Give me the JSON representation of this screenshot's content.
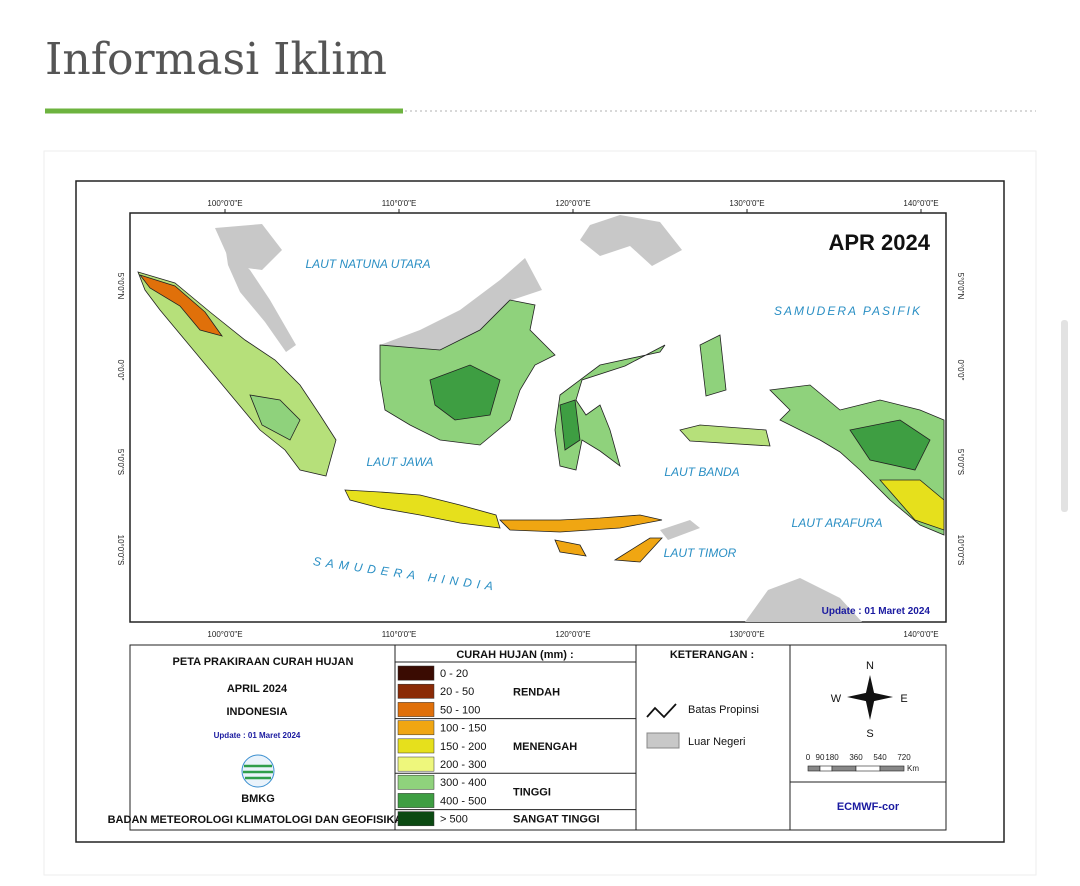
{
  "header": {
    "title": "Informasi Iklim"
  },
  "map": {
    "title": "APR 2024",
    "update": "Update : 01 Maret 2024",
    "longitudes": [
      "100°0'0\"E",
      "110°0'0\"E",
      "120°0'0\"E",
      "130°0'0\"E",
      "140°0'0\"E"
    ],
    "latitudes": [
      "5°0'0\"N",
      "0°0'0\"",
      "5°0'0\"S",
      "10°0'0\"S"
    ],
    "seas": [
      "LAUT NATUNA UTARA",
      "SAMUDERA PASIFIK",
      "LAUT JAWA",
      "LAUT BANDA",
      "LAUT ARAFURA",
      "LAUT TIMOR",
      "SAMUDERA HINDIA"
    ]
  },
  "legend": {
    "title": "PETA PRAKIRAAN CURAH HUJAN",
    "period": "APRIL 2024",
    "region": "INDONESIA",
    "update": "Update : 01 Maret 2024",
    "logo": "BMKG",
    "agency": "BADAN METEOROLOGI KLIMATOLOGI DAN GEOFISIKA",
    "rainfall_title": "CURAH HUJAN (mm) :",
    "groups": [
      {
        "name": "RENDAH",
        "classes": [
          {
            "range": "0 - 20",
            "color": "#3a0b02"
          },
          {
            "range": "20 - 50",
            "color": "#8a2a06"
          },
          {
            "range": "50 - 100",
            "color": "#e0700a"
          }
        ]
      },
      {
        "name": "MENENGAH",
        "classes": [
          {
            "range": "100 - 150",
            "color": "#f0a612"
          },
          {
            "range": "150 - 200",
            "color": "#e6e01c"
          },
          {
            "range": "200 - 300",
            "color": "#eef77c"
          }
        ]
      },
      {
        "name": "TINGGI",
        "classes": [
          {
            "range": "300 - 400",
            "color": "#8fd27c"
          },
          {
            "range": "400 - 500",
            "color": "#3e9e42"
          }
        ]
      },
      {
        "name": "SANGAT TINGGI",
        "classes": [
          {
            "range": "> 500",
            "color": "#0b4a12"
          }
        ]
      }
    ],
    "notes_title": "KETERANGAN :",
    "notes": [
      "Batas Propinsi",
      "Luar Negeri"
    ],
    "compass": [
      "N",
      "W",
      "E",
      "S"
    ],
    "scale": [
      "0",
      "90",
      "180",
      "360",
      "540",
      "720"
    ],
    "scale_unit": "Km",
    "model": "ECMWF-cor"
  }
}
